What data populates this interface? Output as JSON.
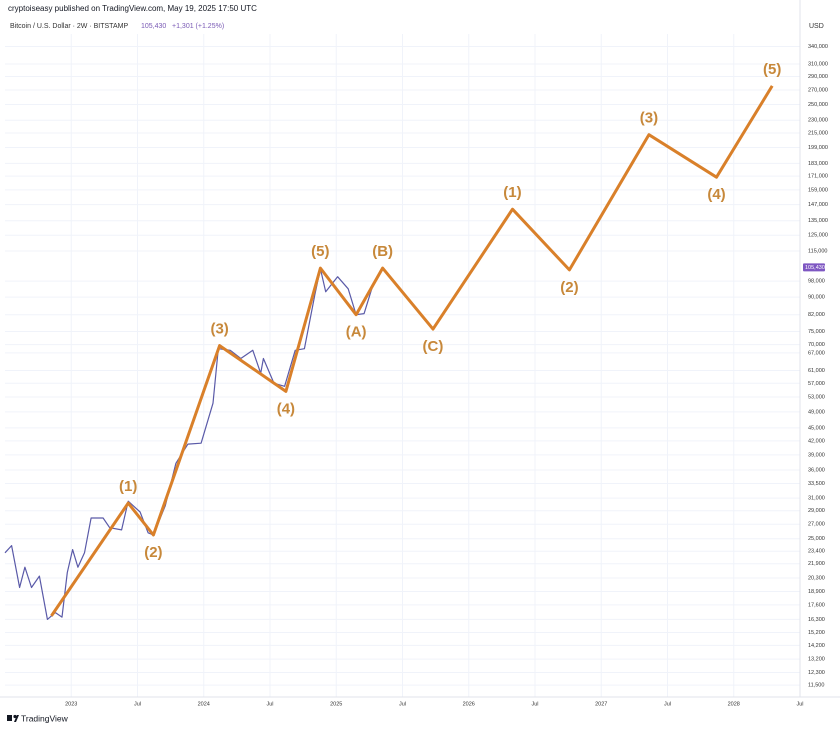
{
  "chart_data": {
    "type": "line",
    "subtitle": "cryptoiseasy published on TradingView.com, May 19, 2025 17:50 UTC",
    "title": "Bitcoin / U.S. Dollar · 2W · BITSTAMP",
    "last_price": {
      "value": 105430,
      "label": "105,430"
    },
    "change": "+1,301 (+1.25%)",
    "currency": "USD",
    "source": "TradingView",
    "log_scale": true,
    "grid": true,
    "xlim": [
      2022.5,
      2028.5
    ],
    "xticks": [
      {
        "value": 2023,
        "label": "2023"
      },
      {
        "value": 2023.5,
        "label": "Jul"
      },
      {
        "value": 2024,
        "label": "2024"
      },
      {
        "value": 2024.5,
        "label": "Jul"
      },
      {
        "value": 2025,
        "label": "2025"
      },
      {
        "value": 2025.5,
        "label": "Jul"
      },
      {
        "value": 2026,
        "label": "2026"
      },
      {
        "value": 2026.5,
        "label": "Jul"
      },
      {
        "value": 2027,
        "label": "2027"
      },
      {
        "value": 2027.5,
        "label": "Jul"
      },
      {
        "value": 2028,
        "label": "2028"
      },
      {
        "value": 2028.5,
        "label": "Jul"
      }
    ],
    "ylim": [
      10800,
      352000
    ],
    "yticks": [
      {
        "value": 340000,
        "label": "340,000"
      },
      {
        "value": 310000,
        "label": "310,000"
      },
      {
        "value": 290000,
        "label": "290,000"
      },
      {
        "value": 270000,
        "label": "270,000"
      },
      {
        "value": 250000,
        "label": "250,000"
      },
      {
        "value": 230000,
        "label": "230,000"
      },
      {
        "value": 215000,
        "label": "215,000"
      },
      {
        "value": 199000,
        "label": "199,000"
      },
      {
        "value": 183000,
        "label": "183,000"
      },
      {
        "value": 171000,
        "label": "171,000"
      },
      {
        "value": 159000,
        "label": "159,000"
      },
      {
        "value": 147000,
        "label": "147,000"
      },
      {
        "value": 135000,
        "label": "135,000"
      },
      {
        "value": 125000,
        "label": "125,000"
      },
      {
        "value": 115000,
        "label": "115,000"
      },
      {
        "value": 98000,
        "label": "98,000"
      },
      {
        "value": 90000,
        "label": "90,000"
      },
      {
        "value": 82000,
        "label": "82,000"
      },
      {
        "value": 75000,
        "label": "75,000"
      },
      {
        "value": 70000,
        "label": "70,000"
      },
      {
        "value": 67000,
        "label": "67,000"
      },
      {
        "value": 61000,
        "label": "61,000"
      },
      {
        "value": 57000,
        "label": "57,000"
      },
      {
        "value": 53000,
        "label": "53,000"
      },
      {
        "value": 49000,
        "label": "49,000"
      },
      {
        "value": 45000,
        "label": "45,000"
      },
      {
        "value": 42000,
        "label": "42,000"
      },
      {
        "value": 39000,
        "label": "39,000"
      },
      {
        "value": 36000,
        "label": "36,000"
      },
      {
        "value": 33500,
        "label": "33,500"
      },
      {
        "value": 31000,
        "label": "31,000"
      },
      {
        "value": 29000,
        "label": "29,000"
      },
      {
        "value": 27000,
        "label": "27,000"
      },
      {
        "value": 25000,
        "label": "25,000"
      },
      {
        "value": 23400,
        "label": "23,400"
      },
      {
        "value": 21900,
        "label": "21,900"
      },
      {
        "value": 20300,
        "label": "20,300"
      },
      {
        "value": 18900,
        "label": "18,900"
      },
      {
        "value": 17600,
        "label": "17,600"
      },
      {
        "value": 16300,
        "label": "16,300"
      },
      {
        "value": 15200,
        "label": "15,200"
      },
      {
        "value": 14200,
        "label": "14,200"
      },
      {
        "value": 13200,
        "label": "13,200"
      },
      {
        "value": 12300,
        "label": "12,300"
      },
      {
        "value": 11500,
        "label": "11,500"
      }
    ],
    "price": {
      "color": "#5a5aa8",
      "x": [
        2022.5,
        2022.55,
        2022.61,
        2022.65,
        2022.7,
        2022.76,
        2022.82,
        2022.88,
        2022.93,
        2022.97,
        2023.01,
        2023.05,
        2023.1,
        2023.15,
        2023.24,
        2023.29,
        2023.38,
        2023.43,
        2023.52,
        2023.58,
        2023.62,
        2023.71,
        2023.79,
        2023.88,
        2023.98,
        2024.07,
        2024.11,
        2024.2,
        2024.28,
        2024.37,
        2024.43,
        2024.45,
        2024.53,
        2024.61,
        2024.69,
        2024.76,
        2024.84,
        2024.88,
        2024.92,
        2025.01,
        2025.09,
        2025.15,
        2025.21,
        2025.28,
        2025.35
      ],
      "values": [
        23200,
        24100,
        19300,
        21500,
        19300,
        20500,
        16300,
        16900,
        16500,
        20900,
        23600,
        21500,
        23200,
        27900,
        27900,
        26500,
        26200,
        30500,
        28800,
        25800,
        25500,
        29800,
        37300,
        41300,
        41500,
        51300,
        68500,
        67900,
        65000,
        67900,
        60100,
        65000,
        57000,
        56100,
        67900,
        68500,
        91600,
        104600,
        92600,
        100300,
        94100,
        82000,
        82500,
        96600,
        104600
      ]
    },
    "waves": {
      "color": "#d9802a",
      "x": [
        2022.85,
        2023.43,
        2023.62,
        2024.12,
        2024.62,
        2024.88,
        2025.15,
        2025.35,
        2025.73,
        2026.33,
        2026.76,
        2027.36,
        2027.87,
        2028.29
      ],
      "values": [
        16600,
        30200,
        25500,
        69600,
        54600,
        105000,
        82000,
        105000,
        76000,
        143500,
        104000,
        213000,
        170000,
        276000
      ],
      "labels": [
        null,
        "(1)",
        "(2)",
        "(3)",
        "(4)",
        "(5)",
        "(A)",
        "(B)",
        "(C)",
        "(1)",
        "(2)",
        "(3)",
        "(4)",
        "(5)"
      ]
    }
  }
}
